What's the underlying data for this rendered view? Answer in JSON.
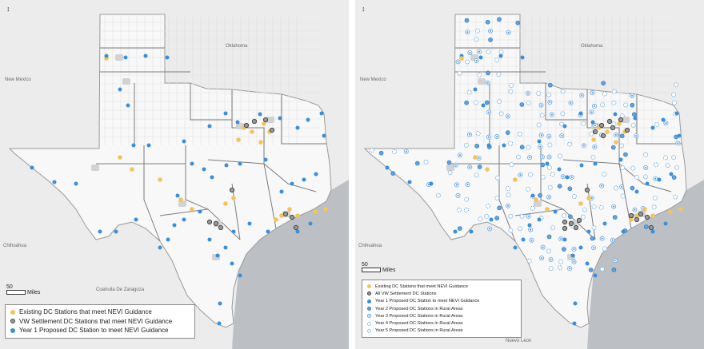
{
  "maps": [
    {
      "id": "left",
      "labels": {
        "oklahoma": "Oklahoma",
        "new_mexico": "New Mexico",
        "chihuahua": "Chihuahua",
        "coahuila": "Coahuila De Zaragoza",
        "scale_value": "50",
        "scale_unit": "Miles"
      },
      "legend": [
        {
          "label": "Existing DC Stations that meet NEVI Guidance",
          "color": "#f2c45c"
        },
        {
          "label": "VW Settlement DC Stations that meet NEVI Guidance",
          "color": "#555555"
        },
        {
          "label": "Year 1 Proposed DC Station to meet NEVI Guidance",
          "color": "#3a8fd8"
        }
      ]
    },
    {
      "id": "right",
      "labels": {
        "oklahoma": "Oklahoma",
        "new_mexico": "New Mexico",
        "chihuahua": "Chihuahua",
        "nuevo_leon": "Nuevo Leon",
        "scale_value": "50",
        "scale_unit": "Miles"
      },
      "legend": [
        {
          "label": "Existing DC Stations that meet NEVI Guidance",
          "color": "#f2c45c"
        },
        {
          "label": "All VW Settlement DC Stations",
          "color": "#555555"
        },
        {
          "label": "Year 1 Proposed DC Station to meet NEVI Guidance",
          "color": "#3a8fd8"
        },
        {
          "label": "Year 2 Proposed DC Stations in Rural Areas",
          "color": "#5fa3e0"
        },
        {
          "label": "Year 3 Proposed DC Stations in Rural Areas",
          "color": "#8fc0ec"
        },
        {
          "label": "Year 4 Proposed DC Stations in Rural Areas",
          "color": "#8fc0ec"
        },
        {
          "label": "Year 5 Proposed DC Stations in Rural Areas",
          "color": "#8fc0ec"
        }
      ]
    }
  ]
}
